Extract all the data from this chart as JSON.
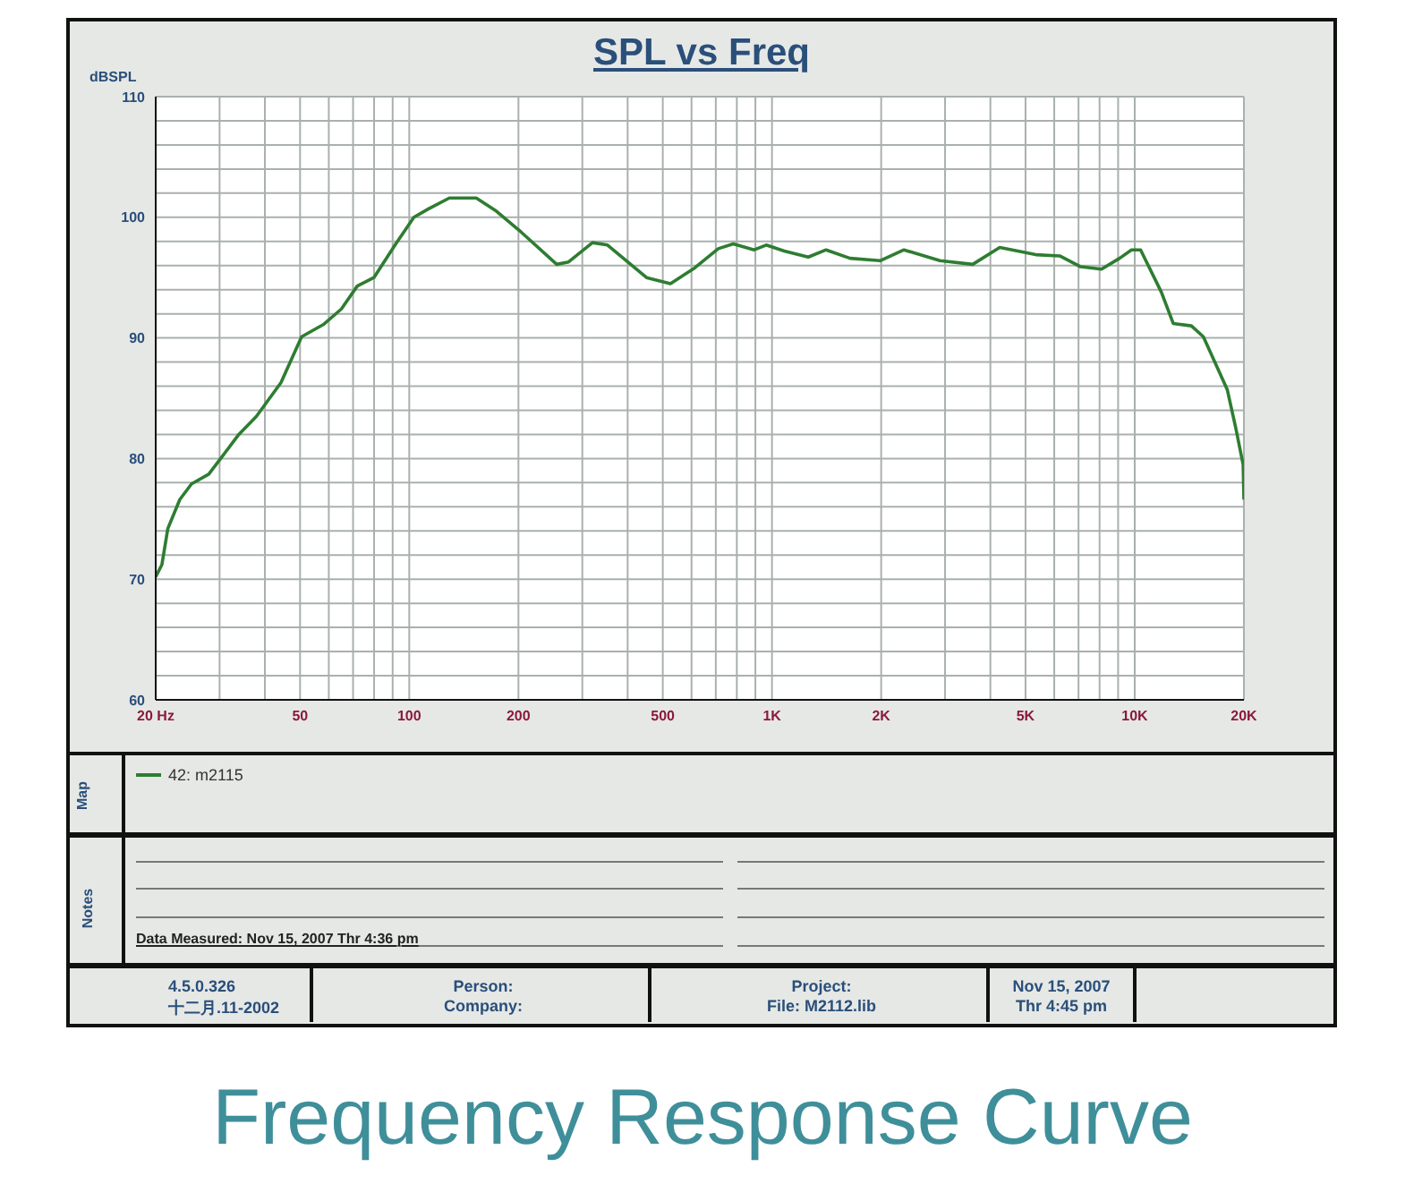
{
  "chart_data": {
    "type": "line",
    "title": "SPL vs Freq",
    "ylabel": "dBSPL",
    "x": [
      20,
      20.8,
      21.6,
      23.3,
      25.1,
      28,
      30.2,
      33.9,
      37.9,
      44.3,
      50.5,
      57.9,
      65,
      71.9,
      79.9,
      91.8,
      103,
      113,
      129,
      153,
      174,
      203,
      255,
      275,
      320,
      352,
      451,
      525,
      612,
      711,
      782,
      893,
      964,
      1081,
      1259,
      1410,
      1641,
      1986,
      2312,
      2904,
      3576,
      4245,
      5336,
      6212,
      7096,
      8100,
      9082,
      9797,
      10380,
      11840,
      12770,
      14330,
      15460,
      18000,
      19000,
      19900,
      20000
    ],
    "series": [
      {
        "name": "42: m2115",
        "color": "#2e7d32",
        "values": [
          70.2,
          71.2,
          74.2,
          76.6,
          77.9,
          78.7,
          80.0,
          82.0,
          83.5,
          86.3,
          90.1,
          91.1,
          92.4,
          94.3,
          95.0,
          97.8,
          100.0,
          100.7,
          101.6,
          101.6,
          100.5,
          98.8,
          96.1,
          96.3,
          97.9,
          97.7,
          95.0,
          94.5,
          95.8,
          97.4,
          97.8,
          97.3,
          97.7,
          97.2,
          96.7,
          97.3,
          96.6,
          96.4,
          97.3,
          96.4,
          96.1,
          97.5,
          96.9,
          96.8,
          95.9,
          95.7,
          96.6,
          97.3,
          97.3,
          93.8,
          91.2,
          91.0,
          90.1,
          85.7,
          82.5,
          79.5,
          76.6
        ]
      }
    ],
    "log": "x",
    "grid": true,
    "legend": "bottom",
    "line_style": "solid",
    "marker": "none",
    "xlim": [
      20,
      20000
    ],
    "ylim": [
      60,
      110
    ],
    "xticks": [
      {
        "value": 20,
        "label": "20  Hz"
      },
      {
        "value": 30,
        "label": null
      },
      {
        "value": 40,
        "label": null
      },
      50,
      {
        "value": 60,
        "label": null
      },
      {
        "value": 70,
        "label": null
      },
      {
        "value": 80,
        "label": null
      },
      {
        "value": 90,
        "label": null
      },
      100,
      200,
      {
        "value": 300,
        "label": null
      },
      {
        "value": 400,
        "label": null
      },
      500,
      {
        "value": 600,
        "label": null
      },
      {
        "value": 700,
        "label": null
      },
      {
        "value": 800,
        "label": null
      },
      {
        "value": 900,
        "label": null
      },
      {
        "value": 1000,
        "label": "1K"
      },
      {
        "value": 2000,
        "label": "2K"
      },
      {
        "value": 3000,
        "label": null
      },
      {
        "value": 4000,
        "label": null
      },
      {
        "value": 5000,
        "label": "5K"
      },
      {
        "value": 6000,
        "label": null
      },
      {
        "value": 7000,
        "label": null
      },
      {
        "value": 8000,
        "label": null
      },
      {
        "value": 9000,
        "label": null
      },
      {
        "value": 10000,
        "label": "10K"
      },
      {
        "value": 20000,
        "label": "20K"
      }
    ],
    "yticks": [
      60,
      {
        "value": 62,
        "label": null
      },
      {
        "value": 64,
        "label": null
      },
      {
        "value": 66,
        "label": null
      },
      {
        "value": 68,
        "label": null
      },
      70,
      {
        "value": 72,
        "label": null
      },
      {
        "value": 74,
        "label": null
      },
      {
        "value": 76,
        "label": null
      },
      {
        "value": 78,
        "label": null
      },
      80,
      {
        "value": 82,
        "label": null
      },
      {
        "value": 84,
        "label": null
      },
      {
        "value": 86,
        "label": null
      },
      {
        "value": 88,
        "label": null
      },
      90,
      {
        "value": 92,
        "label": null
      },
      {
        "value": 94,
        "label": null
      },
      {
        "value": 96,
        "label": null
      },
      {
        "value": 98,
        "label": null
      },
      100,
      {
        "value": 102,
        "label": null
      },
      {
        "value": 104,
        "label": null
      },
      {
        "value": 106,
        "label": null
      },
      {
        "value": 108,
        "label": null
      },
      110
    ],
    "annotations": [
      "Map",
      "Notes",
      "Data Measured: Nov 15, 2007  Thr  4:36 pm",
      "4.5.0.326",
      "十二月.11-2002",
      "Person:",
      "Company:",
      "Project:",
      "File: M2112.lib",
      "Nov 15, 2007",
      "Thr  4:45 pm",
      "Frequency Response Curve"
    ]
  }
}
